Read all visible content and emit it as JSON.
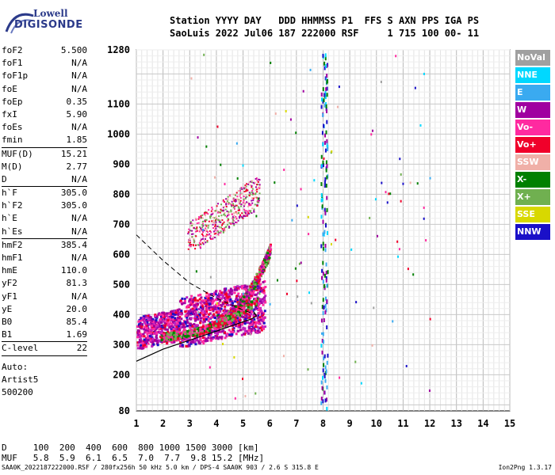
{
  "logo": {
    "line1": "Lowell",
    "line2": "DIGISONDE"
  },
  "header": {
    "line1": "Station YYYY DAY   DDD HHMMSS P1  FFS S AXN PPS IGA PS",
    "line2": "SaoLuis 2022 Jul06 187 222000 RSF     1 715 100 00- 11"
  },
  "params": [
    {
      "k": "foF2",
      "v": "5.500"
    },
    {
      "k": "foF1",
      "v": "N/A"
    },
    {
      "k": "foF1p",
      "v": "N/A"
    },
    {
      "k": "foE",
      "v": "N/A"
    },
    {
      "k": "foEp",
      "v": "0.35"
    },
    {
      "k": "fxI",
      "v": "5.90"
    },
    {
      "k": "foEs",
      "v": "N/A"
    },
    {
      "k": "fmin",
      "v": "1.85"
    },
    {
      "k": "MUF(D)",
      "v": "15.21"
    },
    {
      "k": "M(D)",
      "v": "2.77"
    },
    {
      "k": "D",
      "v": "N/A"
    },
    {
      "k": "h`F",
      "v": "305.0"
    },
    {
      "k": "h`F2",
      "v": "305.0"
    },
    {
      "k": "h`E",
      "v": "N/A"
    },
    {
      "k": "h`Es",
      "v": "N/A"
    },
    {
      "k": "hmF2",
      "v": "385.4"
    },
    {
      "k": "hmF1",
      "v": "N/A"
    },
    {
      "k": "hmE",
      "v": "110.0"
    },
    {
      "k": "yF2",
      "v": "81.3"
    },
    {
      "k": "yF1",
      "v": "N/A"
    },
    {
      "k": "yE",
      "v": "20.0"
    },
    {
      "k": "B0",
      "v": "85.4"
    },
    {
      "k": "B1",
      "v": "1.69"
    },
    {
      "k": "C-level",
      "v": "22"
    }
  ],
  "auto_lines": [
    "Auto:",
    "Artist5",
    "500200"
  ],
  "legend": [
    {
      "label": "NoVal",
      "color": "#a0a0a0"
    },
    {
      "label": "NNE",
      "color": "#00d8ff"
    },
    {
      "label": "E",
      "color": "#3aaaf0"
    },
    {
      "label": "W",
      "color": "#a000a0"
    },
    {
      "label": "Vo-",
      "color": "#ff2aa0"
    },
    {
      "label": "Vo+",
      "color": "#f0002a"
    },
    {
      "label": "SSW",
      "color": "#f0b0a8"
    },
    {
      "label": "X-",
      "color": "#008000"
    },
    {
      "label": "X+",
      "color": "#70b050"
    },
    {
      "label": "SSE",
      "color": "#d8d800"
    },
    {
      "label": "NNW",
      "color": "#1a10c8"
    }
  ],
  "muf_table": {
    "line1": "D     100  200  400  600  800 1000 1500 3000 [km]",
    "line2": "MUF   5.8  5.9  6.1  6.5  7.0  7.7  9.8 15.2 [MHz]"
  },
  "footer": {
    "left": "SAA0K_2022187222000.RSF / 280fx256h 50 kHz 5.0 km / DPS-4 SAA0K 903 / 2.6 S 315.8 E",
    "right": "Ion2Png 1.3.17"
  },
  "chart_data": {
    "type": "scatter",
    "title": "",
    "xlabel": "",
    "ylabel": "",
    "xlim": [
      1,
      15
    ],
    "ylim": [
      80,
      1280
    ],
    "x_ticks": [
      1,
      2,
      3,
      4,
      5,
      6,
      7,
      8,
      9,
      10,
      11,
      12,
      13,
      14,
      15
    ],
    "y_ticks": [
      80,
      200,
      300,
      400,
      500,
      600,
      700,
      800,
      900,
      1000,
      1100,
      1280
    ],
    "grid": true,
    "legend_position": "right",
    "clusters": [
      {
        "name": "F-layer O-mode trace",
        "x_range": [
          1.9,
          5.5
        ],
        "y_range": [
          330,
          470
        ]
      },
      {
        "name": "F-layer X-mode trace",
        "x_range": [
          4.4,
          6.0
        ],
        "y_range": [
          380,
          620
        ]
      },
      {
        "name": "Spread F echoes",
        "x_range": [
          1.0,
          5.8
        ],
        "y_range": [
          290,
          520
        ]
      },
      {
        "name": "Second hop echoes",
        "x_range": [
          3.0,
          5.6
        ],
        "y_range": [
          640,
          860
        ]
      },
      {
        "name": "8 MHz interference",
        "x_range": [
          7.8,
          8.2
        ],
        "y_range": [
          80,
          1280
        ]
      }
    ],
    "profile_curve": {
      "x": [
        1.0,
        2.0,
        3.0,
        4.0,
        4.8,
        5.3,
        5.5,
        5.4
      ],
      "y": [
        245,
        285,
        315,
        345,
        370,
        385,
        395,
        410
      ]
    },
    "dashed_curve": {
      "x": [
        1.0,
        2.0,
        3.0,
        4.0,
        5.0,
        5.5
      ],
      "y": [
        665,
        580,
        505,
        455,
        415,
        400
      ]
    }
  }
}
